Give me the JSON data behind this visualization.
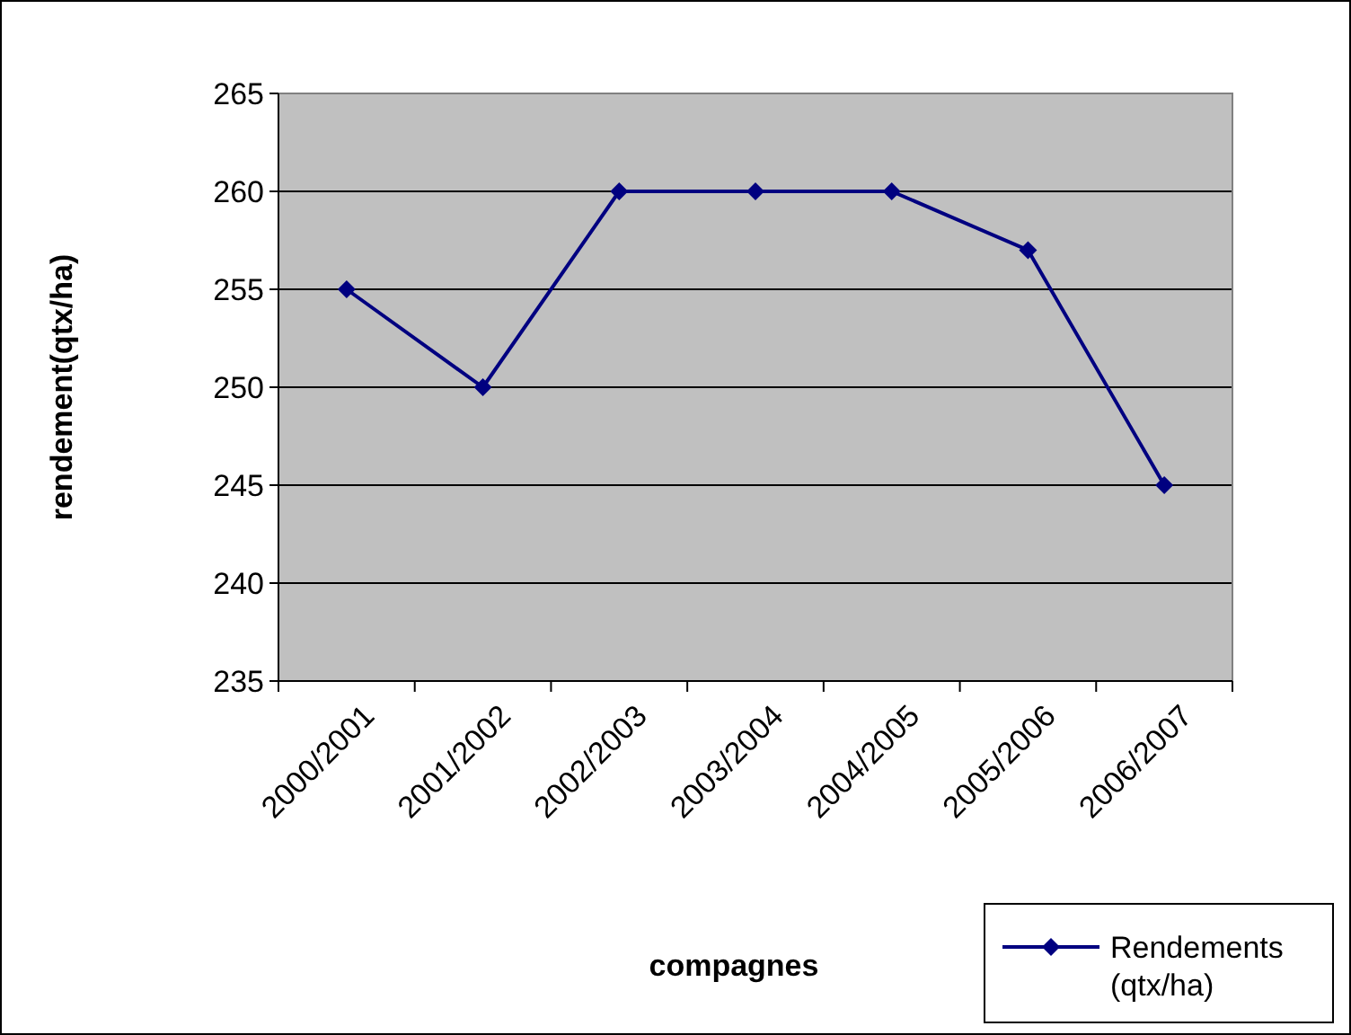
{
  "chart_data": {
    "type": "line",
    "xlabel": "compagnes",
    "ylabel": "rendement(qtx/ha)",
    "categories": [
      "2000/2001",
      "2001/2002",
      "2002/2003",
      "2003/2004",
      "2004/2005",
      "2005/2006",
      "2006/2007"
    ],
    "series": [
      {
        "name": "Rendements (qtx/ha)",
        "color": "#000080",
        "values": [
          255,
          250,
          260,
          260,
          260,
          257,
          245
        ]
      }
    ],
    "ylim": [
      235,
      265
    ],
    "yticks": [
      235,
      240,
      245,
      250,
      255,
      260,
      265
    ],
    "grid": "y",
    "legend": "bottom right",
    "marker": "diamond",
    "line_style": "solid"
  }
}
